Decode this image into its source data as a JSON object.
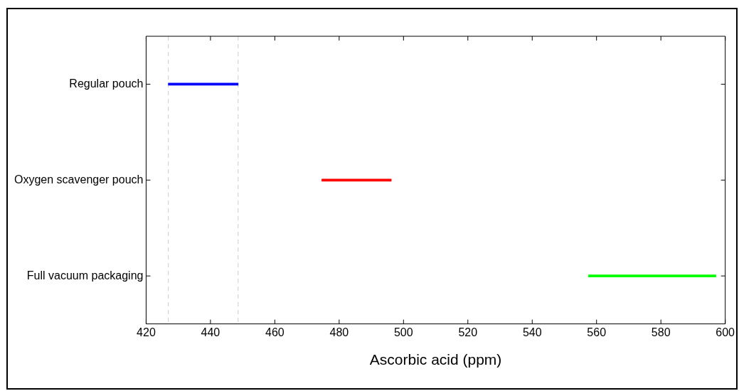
{
  "chart_data": {
    "type": "bar",
    "orientation": "horizontal",
    "xlabel": "Ascorbic acid (ppm)",
    "categories": [
      "Regular pouch",
      "Oxygen scavenger pouch",
      "Full vacuum packaging"
    ],
    "base": [
      426.9,
      474.6,
      557.5
    ],
    "values": [
      21.7,
      21.6,
      39.6
    ],
    "colors": [
      "#0000ff",
      "#ff0000",
      "#00ff00"
    ],
    "xlim": [
      420,
      600
    ],
    "xticks": [
      420,
      440,
      460,
      480,
      500,
      520,
      540,
      560,
      580,
      600
    ],
    "ref_lines": [
      {
        "axis": "x",
        "value": 426.9,
        "color": "#cccccc",
        "line_style": "dashed"
      },
      {
        "axis": "x",
        "value": 448.6,
        "color": "#cccccc",
        "line_style": "dashed"
      }
    ],
    "grid": false,
    "legend": false
  }
}
